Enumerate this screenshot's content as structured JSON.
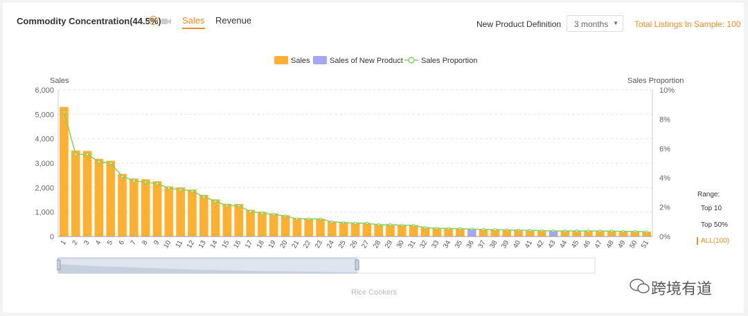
{
  "header": {
    "title": "Commodity Concentration(44.5%)",
    "help_icon": "question-circle-icon",
    "video_icon": "video-camera-icon",
    "tabs": [
      {
        "label": "Sales",
        "active": true
      },
      {
        "label": "Revenue",
        "active": false
      }
    ],
    "definition_label": "New Product Definition",
    "definition_value": "3 months",
    "total_listings": "Total Listings In Sample: 100"
  },
  "range": {
    "title": "Range:",
    "options": [
      "Top 10",
      "Top 50%",
      "ALL(100)"
    ],
    "selected": "ALL(100)"
  },
  "slider": {
    "label": "Rice Cookers"
  },
  "watermark": "跨境有道",
  "colors": {
    "sales": "#ffb031",
    "new_product": "#a5a7f0",
    "proportion": "#7ed35d",
    "accent": "#f08a24"
  },
  "chart_data": {
    "type": "bar",
    "ylabel": "Sales",
    "y2label": "Sales Proportion",
    "ylim": [
      0,
      6000
    ],
    "y_ticks": [
      "0",
      "1,000",
      "2,000",
      "3,000",
      "4,000",
      "5,000",
      "6,000"
    ],
    "y2lim": [
      0,
      10
    ],
    "y2_ticks": [
      "0%",
      "2%",
      "4%",
      "6%",
      "8%",
      "10%"
    ],
    "legend": [
      "Sales",
      "Sales of New Product",
      "Sales Proportion"
    ],
    "legend_position": "top-center",
    "grid": true,
    "categories": [
      "1",
      "2",
      "3",
      "4",
      "5",
      "6",
      "7",
      "8",
      "9",
      "10",
      "11",
      "12",
      "13",
      "14",
      "15",
      "16",
      "17",
      "18",
      "19",
      "20",
      "21",
      "22",
      "23",
      "24",
      "25",
      "26",
      "27",
      "28",
      "29",
      "30",
      "31",
      "32",
      "33",
      "34",
      "35",
      "36",
      "37",
      "38",
      "39",
      "40",
      "41",
      "42",
      "43",
      "44",
      "45",
      "46",
      "47",
      "48",
      "49",
      "50",
      "51"
    ],
    "series": [
      {
        "name": "Sales",
        "values": [
          5300,
          3520,
          3500,
          3180,
          3100,
          2560,
          2370,
          2340,
          2260,
          2050,
          2010,
          1920,
          1700,
          1520,
          1340,
          1330,
          1090,
          1010,
          950,
          870,
          760,
          740,
          730,
          610,
          590,
          570,
          540,
          490,
          490,
          480,
          470,
          380,
          350,
          340,
          330,
          0,
          300,
          290,
          280,
          270,
          260,
          250,
          0,
          240,
          240,
          240,
          230,
          230,
          220,
          210,
          200
        ]
      },
      {
        "name": "Sales of New Product",
        "values": [
          0,
          0,
          0,
          0,
          0,
          0,
          0,
          0,
          0,
          0,
          0,
          0,
          0,
          0,
          0,
          0,
          0,
          0,
          0,
          0,
          0,
          0,
          0,
          0,
          0,
          0,
          0,
          0,
          0,
          0,
          0,
          0,
          0,
          0,
          0,
          320,
          0,
          0,
          0,
          0,
          0,
          0,
          240,
          0,
          0,
          0,
          0,
          0,
          0,
          0,
          0
        ]
      },
      {
        "name": "Sales Proportion",
        "values": [
          8.5,
          5.6,
          5.6,
          5.1,
          5.0,
          4.1,
          3.8,
          3.7,
          3.6,
          3.3,
          3.2,
          3.1,
          2.7,
          2.4,
          2.1,
          2.1,
          1.7,
          1.6,
          1.5,
          1.4,
          1.2,
          1.2,
          1.2,
          1.0,
          0.95,
          0.9,
          0.9,
          0.8,
          0.8,
          0.77,
          0.75,
          0.6,
          0.56,
          0.55,
          0.53,
          0.5,
          0.48,
          0.46,
          0.45,
          0.43,
          0.42,
          0.4,
          0.38,
          0.38,
          0.38,
          0.38,
          0.37,
          0.37,
          0.35,
          0.34,
          0.32
        ]
      }
    ]
  }
}
